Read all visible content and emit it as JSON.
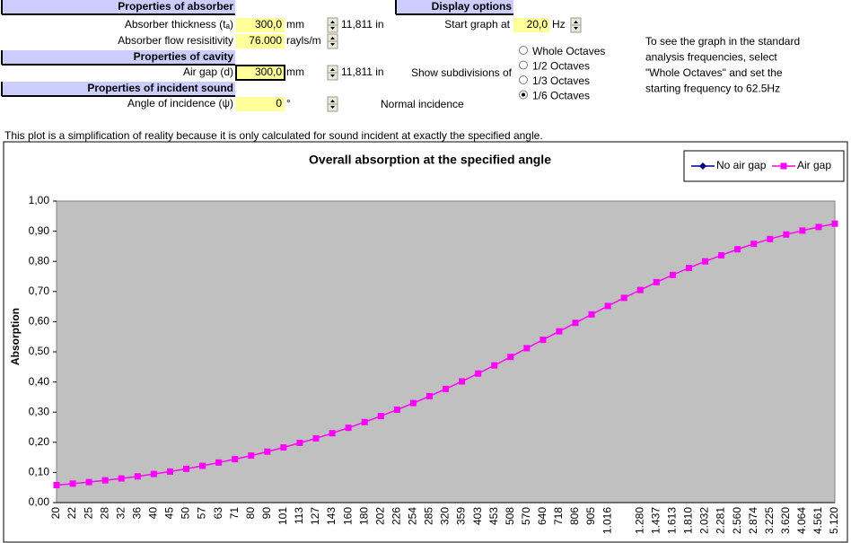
{
  "form": {
    "sections": [
      {
        "header": "Properties of absorber",
        "rows": [
          {
            "label": "Absorber thickness (tₐ)",
            "value": "300,0",
            "unit": "mm",
            "converted": "11,811 in"
          },
          {
            "label": "Absorber flow resisitivity",
            "value": "76.000",
            "unit": "rayls/m"
          }
        ]
      },
      {
        "header": "Properties of cavity",
        "rows": [
          {
            "label": "Air gap (d)",
            "value": "300,0",
            "unit": "mm",
            "converted": "11,811 in"
          }
        ]
      },
      {
        "header": "Properties of incident sound",
        "rows": [
          {
            "label": "Angle of incidence (ψ)",
            "value": "0",
            "unit": "°",
            "note": "Normal incidence"
          }
        ]
      }
    ]
  },
  "display": {
    "header": "Display options",
    "start_label": "Start graph at",
    "start_value": "20,0",
    "start_unit": "Hz",
    "subdiv_label": "Show subdivisions of",
    "options": [
      "Whole Octaves",
      "1/2 Octaves",
      "1/3 Octaves",
      "1/6 Octaves"
    ],
    "selected": 3
  },
  "help": [
    "To see the graph in the standard",
    "analysis frequencies, select",
    "\"Whole Octaves\" and set the",
    "starting frequency to 62.5Hz"
  ],
  "plot_note": "This plot is a simplification of reality because it is only calculated for sound incident at exactly the specified angle.",
  "chart_data": {
    "type": "line",
    "title": "Overall absorption at the specified angle",
    "y_label": "Absorption",
    "categories": [
      "20",
      "22",
      "25",
      "28",
      "32",
      "36",
      "40",
      "45",
      "50",
      "57",
      "63",
      "71",
      "80",
      "90",
      "101",
      "113",
      "127",
      "143",
      "160",
      "180",
      "202",
      "226",
      "254",
      "285",
      "320",
      "359",
      "403",
      "453",
      "508",
      "570",
      "640",
      "718",
      "806",
      "905",
      "1.016",
      null,
      "1.280",
      "1.437",
      "1.613",
      "1.810",
      "2.032",
      "2.281",
      "2.560",
      "2.874",
      "3.225",
      "3.620",
      "4.064",
      "4.561",
      "5.120"
    ],
    "series": [
      {
        "name": "No air gap",
        "color": "#000080",
        "marker": "diamond",
        "values": [
          null,
          null,
          null,
          null,
          null,
          null,
          null,
          null,
          null,
          null,
          null,
          null,
          null,
          null,
          null,
          null,
          null,
          null,
          null,
          null,
          null,
          null,
          null,
          null,
          null,
          null,
          null,
          null,
          null,
          null,
          null,
          null,
          null,
          null,
          null,
          null,
          null,
          null,
          null,
          null,
          null,
          null,
          null,
          null,
          null,
          null,
          null,
          null,
          null
        ]
      },
      {
        "name": "Air gap",
        "color": "#ff00ff",
        "marker": "square",
        "values": [
          0.058,
          0.063,
          0.068,
          0.074,
          0.08,
          0.087,
          0.095,
          0.103,
          0.112,
          0.122,
          0.133,
          0.144,
          0.156,
          0.169,
          0.183,
          0.198,
          0.213,
          0.23,
          0.248,
          0.267,
          0.287,
          0.308,
          0.33,
          0.353,
          0.377,
          0.402,
          0.428,
          0.455,
          0.483,
          0.512,
          0.54,
          0.568,
          0.596,
          0.624,
          0.652,
          0.679,
          0.705,
          0.731,
          0.755,
          0.778,
          0.8,
          0.82,
          0.84,
          0.858,
          0.874,
          0.889,
          0.902,
          0.914,
          0.925
        ]
      }
    ],
    "ylim": [
      0,
      1
    ],
    "yticks": [
      {
        "value": 0,
        "label": "0,00"
      },
      {
        "value": 0.1,
        "label": "0,10"
      },
      {
        "value": 0.2,
        "label": "0,20"
      },
      {
        "value": 0.3,
        "label": "0,30"
      },
      {
        "value": 0.4,
        "label": "0,40"
      },
      {
        "value": 0.5,
        "label": "0,50"
      },
      {
        "value": 0.6,
        "label": "0,60"
      },
      {
        "value": 0.7,
        "label": "0,70"
      },
      {
        "value": 0.8,
        "label": "0,80"
      },
      {
        "value": 0.9,
        "label": "0,90"
      },
      {
        "value": 1,
        "label": "1,00"
      }
    ],
    "plot_background": "#c0c0c0",
    "legend": "top-right"
  }
}
